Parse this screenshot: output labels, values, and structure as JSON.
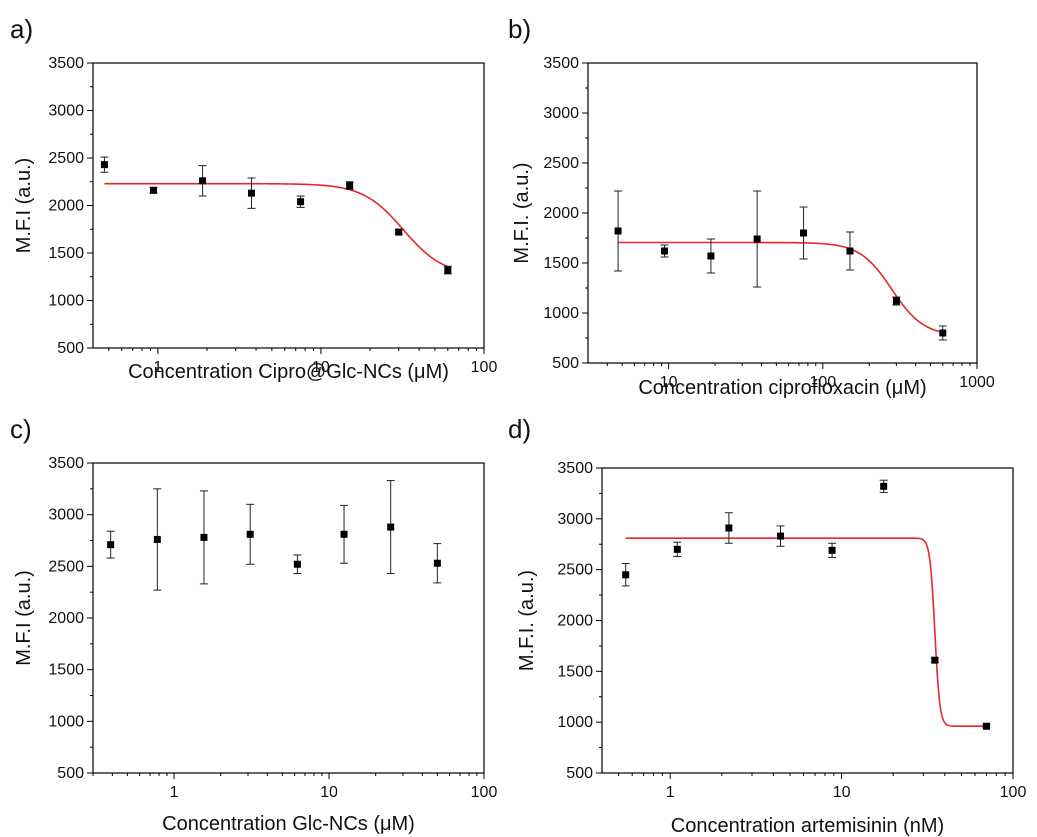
{
  "chart_data": [
    {
      "panel": "a)",
      "type": "scatter",
      "xlabel": "Concentration Cipro@Glc-NCs (μM)",
      "ylabel": "M.F.I (a.u.)",
      "xscale": "log",
      "xlim": [
        0.4,
        100
      ],
      "ylim": [
        500,
        3500
      ],
      "yticks": [
        500,
        1000,
        1500,
        2000,
        2500,
        3000,
        3500
      ],
      "xticks": [
        1,
        10,
        100
      ],
      "xtick_labels": [
        "1",
        "10",
        "100"
      ],
      "points": [
        {
          "x": 0.47,
          "y": 2430,
          "err": 80
        },
        {
          "x": 0.94,
          "y": 2160,
          "err": 30
        },
        {
          "x": 1.88,
          "y": 2260,
          "err": 160
        },
        {
          "x": 3.75,
          "y": 2130,
          "err": 160
        },
        {
          "x": 7.5,
          "y": 2040,
          "err": 60
        },
        {
          "x": 15,
          "y": 2210,
          "err": 40
        },
        {
          "x": 30,
          "y": 1720,
          "err": 20
        },
        {
          "x": 60,
          "y": 1320,
          "err": 40
        }
      ],
      "fit": {
        "top": 2230,
        "bottom": 1260,
        "ec50": 32,
        "hill": 3.5,
        "x_range": [
          0.47,
          60
        ],
        "color": "#e8262c"
      }
    },
    {
      "panel": "b)",
      "type": "scatter",
      "xlabel": "Concentration ciprofloxacin (μM)",
      "ylabel": "M.F.I. (a.u.)",
      "xscale": "log",
      "xlim": [
        3,
        1000
      ],
      "ylim": [
        500,
        3500
      ],
      "yticks": [
        500,
        1000,
        1500,
        2000,
        2500,
        3000,
        3500
      ],
      "xticks": [
        10,
        100,
        1000
      ],
      "xtick_labels": [
        "10",
        "100",
        "1000"
      ],
      "points": [
        {
          "x": 4.7,
          "y": 1820,
          "err": 400
        },
        {
          "x": 9.4,
          "y": 1620,
          "err": 60
        },
        {
          "x": 18.8,
          "y": 1570,
          "err": 170
        },
        {
          "x": 37.5,
          "y": 1740,
          "err": 480
        },
        {
          "x": 75,
          "y": 1800,
          "err": 260
        },
        {
          "x": 150,
          "y": 1620,
          "err": 190
        },
        {
          "x": 300,
          "y": 1120,
          "err": 40
        },
        {
          "x": 600,
          "y": 800,
          "err": 70
        }
      ],
      "fit": {
        "top": 1705,
        "bottom": 770,
        "ec50": 280,
        "hill": 4.2,
        "x_range": [
          4.7,
          600
        ],
        "color": "#e8262c"
      }
    },
    {
      "panel": "c)",
      "type": "scatter",
      "xlabel": "Concentration Glc-NCs (μM)",
      "ylabel": "M.F.I (a.u.)",
      "xscale": "log",
      "xlim": [
        0.3,
        100
      ],
      "ylim": [
        500,
        3500
      ],
      "yticks": [
        500,
        1000,
        1500,
        2000,
        2500,
        3000,
        3500
      ],
      "xticks": [
        1,
        10,
        100
      ],
      "xtick_labels": [
        "1",
        "10",
        "100"
      ],
      "points": [
        {
          "x": 0.39,
          "y": 2710,
          "err": 130
        },
        {
          "x": 0.78,
          "y": 2760,
          "err": 490
        },
        {
          "x": 1.56,
          "y": 2780,
          "err": 450
        },
        {
          "x": 3.1,
          "y": 2810,
          "err": 290
        },
        {
          "x": 6.25,
          "y": 2520,
          "err": 90
        },
        {
          "x": 12.5,
          "y": 2810,
          "err": 280
        },
        {
          "x": 25,
          "y": 2880,
          "err": 450
        },
        {
          "x": 50,
          "y": 2530,
          "err": 190
        }
      ]
    },
    {
      "panel": "d)",
      "type": "scatter",
      "xlabel": "Concentration artemisinin (nM)",
      "ylabel": "M.F.I. (a.u.)",
      "xscale": "log",
      "xlim": [
        0.4,
        100
      ],
      "ylim": [
        500,
        3500
      ],
      "yticks": [
        500,
        1000,
        1500,
        2000,
        2500,
        3000,
        3500
      ],
      "xticks": [
        1,
        10,
        100
      ],
      "xtick_labels": [
        "1",
        "10",
        "100"
      ],
      "points": [
        {
          "x": 0.55,
          "y": 2450,
          "err": 110
        },
        {
          "x": 1.1,
          "y": 2700,
          "err": 70
        },
        {
          "x": 2.2,
          "y": 2910,
          "err": 150
        },
        {
          "x": 4.4,
          "y": 2830,
          "err": 100
        },
        {
          "x": 8.8,
          "y": 2690,
          "err": 70
        },
        {
          "x": 17.6,
          "y": 3320,
          "err": 60
        },
        {
          "x": 35,
          "y": 1610,
          "err": 20
        },
        {
          "x": 70,
          "y": 960,
          "err": 15
        }
      ],
      "fit": {
        "top": 2810,
        "bottom": 960,
        "ec50": 35,
        "hill": 30,
        "x_range": [
          0.55,
          70
        ],
        "color": "#e8262c"
      }
    }
  ]
}
